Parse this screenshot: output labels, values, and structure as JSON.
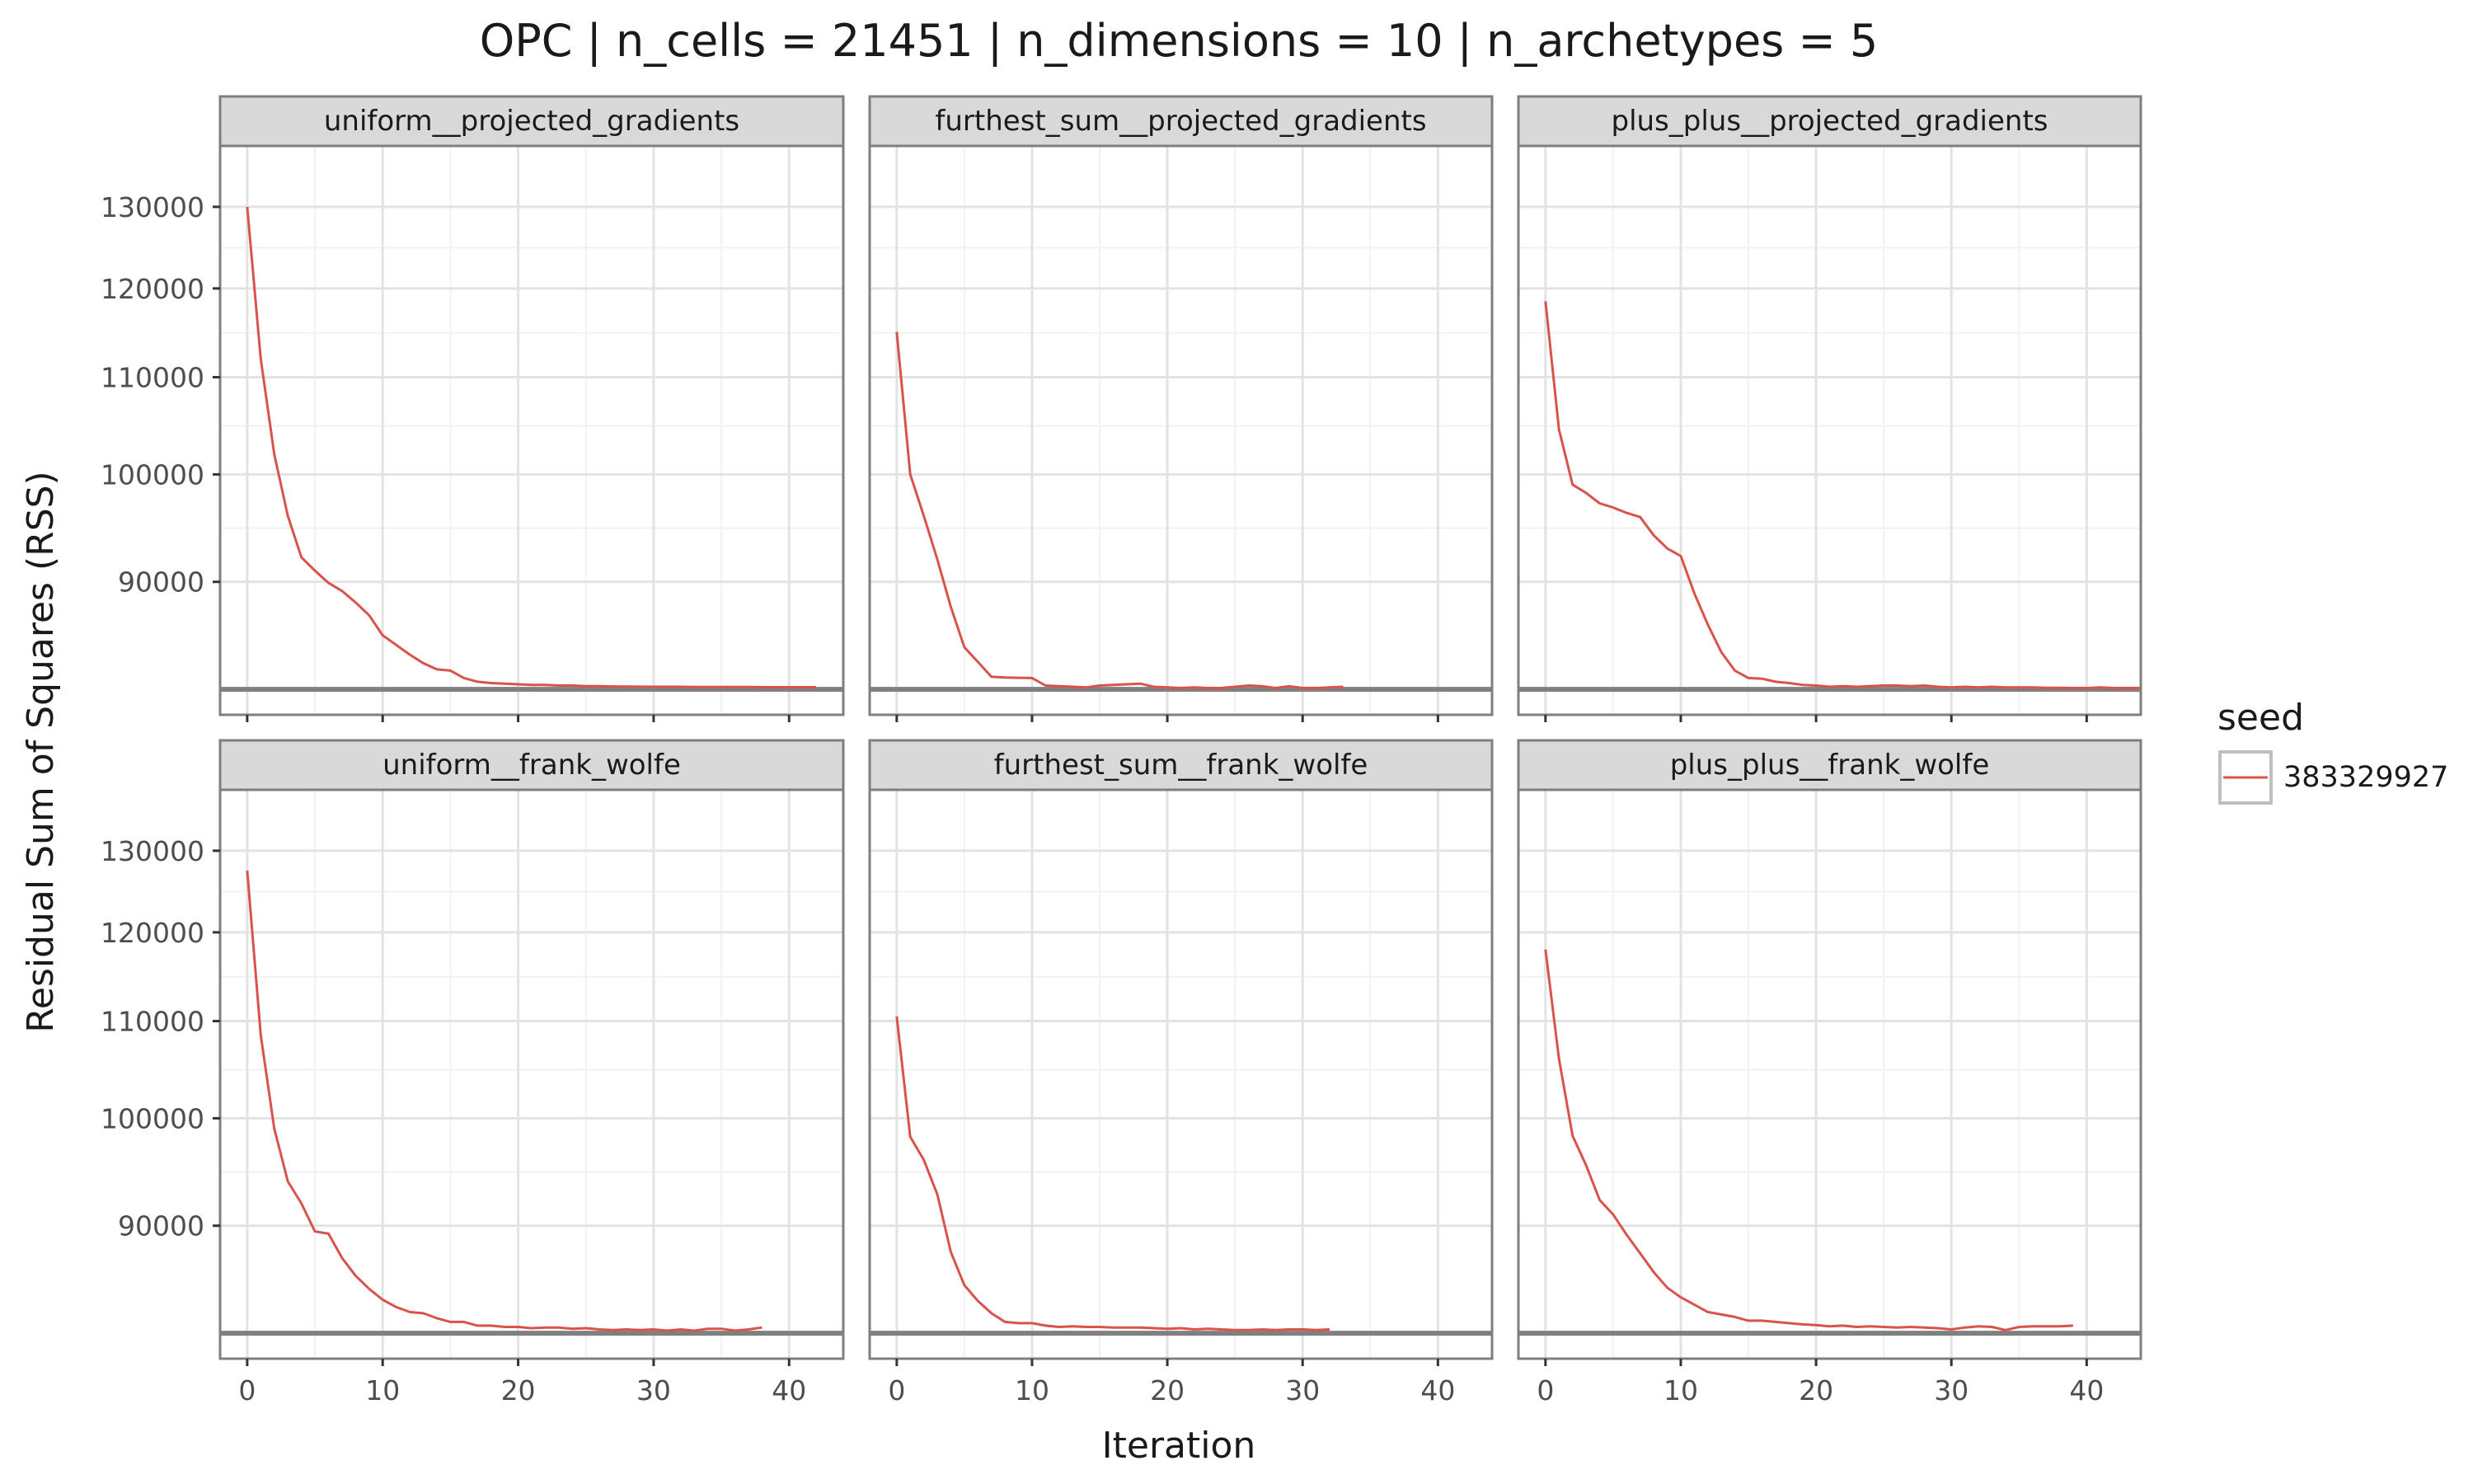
{
  "chart_data": {
    "type": "line",
    "title": "OPC | n_cells = 21451 | n_dimensions = 10 | n_archetypes = 5",
    "xlabel": "Iteration",
    "ylabel": "Residual Sum of Squares (RSS)",
    "x_ticks": [
      "0",
      "10",
      "20",
      "30",
      "40"
    ],
    "y_ticks": [
      "90000",
      "100000",
      "110000",
      "120000",
      "130000"
    ],
    "xlim": [
      -2,
      44
    ],
    "y_scale": "log",
    "ylim": [
      79000,
      138000
    ],
    "grid": true,
    "legend": {
      "title": "seed",
      "placement": "right",
      "entries": [
        {
          "label": "383329927",
          "color": "#d9534a"
        }
      ]
    },
    "reference_line": {
      "y": 81000,
      "color": "#808080"
    },
    "facets": [
      {
        "name": "uniform__projected_gradients",
        "series": [
          {
            "name": "383329927",
            "color": "#d9534a",
            "x": [
              0,
              1,
              2,
              3,
              4,
              5,
              6,
              7,
              8,
              9,
              10,
              11,
              12,
              13,
              14,
              15,
              16,
              17,
              18,
              19,
              20,
              21,
              22,
              23,
              24,
              25,
              26,
              27,
              28,
              29,
              30,
              31,
              32,
              33,
              34,
              35,
              36,
              37,
              38,
              39,
              40,
              41,
              42
            ],
            "y": [
              130000,
              112000,
              102000,
              96000,
              92200,
              91000,
              89900,
              89200,
              88200,
              87100,
              85400,
              84600,
              83800,
              83100,
              82600,
              82500,
              81900,
              81600,
              81500,
              81450,
              81400,
              81350,
              81350,
              81300,
              81300,
              81250,
              81250,
              81230,
              81220,
              81210,
              81200,
              81200,
              81200,
              81190,
              81190,
              81180,
              81180,
              81180,
              81170,
              81170,
              81170,
              81170,
              81170
            ]
          }
        ]
      },
      {
        "name": "furthest_sum__projected_gradients",
        "series": [
          {
            "name": "383329927",
            "color": "#d9534a",
            "x": [
              0,
              1,
              2,
              3,
              4,
              5,
              6,
              7,
              8,
              9,
              10,
              11,
              12,
              13,
              14,
              15,
              16,
              17,
              18,
              19,
              20,
              21,
              22,
              23,
              24,
              25,
              26,
              27,
              28,
              29,
              30,
              31,
              32,
              33
            ],
            "y": [
              115000,
              100000,
              96000,
              92000,
              87800,
              84400,
              83200,
              82000,
              81950,
              81920,
              81900,
              81300,
              81250,
              81200,
              81150,
              81300,
              81350,
              81400,
              81450,
              81200,
              81150,
              81100,
              81150,
              81100,
              81100,
              81200,
              81300,
              81250,
              81100,
              81250,
              81100,
              81100,
              81150,
              81200
            ]
          }
        ]
      },
      {
        "name": "plus_plus__projected_gradients",
        "series": [
          {
            "name": "383329927",
            "color": "#d9534a",
            "x": [
              0,
              1,
              2,
              3,
              4,
              5,
              6,
              7,
              8,
              9,
              10,
              11,
              12,
              13,
              14,
              15,
              16,
              17,
              18,
              19,
              20,
              21,
              22,
              23,
              24,
              25,
              26,
              27,
              28,
              29,
              30,
              31,
              32,
              33,
              34,
              35,
              36,
              37,
              38,
              39,
              40,
              41,
              42,
              43,
              44
            ],
            "y": [
              118500,
              104500,
              99000,
              98200,
              97200,
              96800,
              96300,
              95900,
              94200,
              93000,
              92300,
              89000,
              86300,
              84000,
              82500,
              81900,
              81850,
              81600,
              81500,
              81350,
              81300,
              81200,
              81250,
              81200,
              81250,
              81300,
              81300,
              81250,
              81300,
              81200,
              81150,
              81200,
              81150,
              81200,
              81150,
              81150,
              81150,
              81120,
              81120,
              81100,
              81100,
              81150,
              81100,
              81100,
              81100
            ]
          }
        ]
      },
      {
        "name": "uniform__frank_wolfe",
        "series": [
          {
            "name": "383329927",
            "color": "#d9534a",
            "x": [
              0,
              1,
              2,
              3,
              4,
              5,
              6,
              7,
              8,
              9,
              10,
              11,
              12,
              13,
              14,
              15,
              16,
              17,
              18,
              19,
              20,
              21,
              22,
              23,
              24,
              25,
              26,
              27,
              28,
              29,
              30,
              31,
              32,
              33,
              34,
              35,
              36,
              37,
              38
            ],
            "y": [
              127500,
              108500,
              99000,
              94000,
              92000,
              89500,
              89300,
              87200,
              85700,
              84600,
              83700,
              83100,
              82700,
              82600,
              82200,
              81900,
              81900,
              81600,
              81600,
              81500,
              81500,
              81400,
              81450,
              81450,
              81350,
              81400,
              81300,
              81250,
              81300,
              81250,
              81300,
              81200,
              81300,
              81200,
              81350,
              81350,
              81200,
              81300,
              81450
            ]
          }
        ]
      },
      {
        "name": "furthest_sum__frank_wolfe",
        "series": [
          {
            "name": "383329927",
            "color": "#d9534a",
            "x": [
              0,
              1,
              2,
              3,
              4,
              5,
              6,
              7,
              8,
              9,
              10,
              11,
              12,
              13,
              14,
              15,
              16,
              17,
              18,
              19,
              20,
              21,
              22,
              23,
              24,
              25,
              26,
              27,
              28,
              29,
              30,
              31,
              32
            ],
            "y": [
              110500,
              98200,
              96000,
              92800,
              87700,
              84900,
              83600,
              82600,
              81900,
              81800,
              81800,
              81600,
              81500,
              81550,
              81500,
              81500,
              81450,
              81450,
              81450,
              81400,
              81350,
              81400,
              81300,
              81350,
              81300,
              81250,
              81250,
              81300,
              81250,
              81300,
              81300,
              81250,
              81300
            ]
          }
        ]
      },
      {
        "name": "plus_plus__frank_wolfe",
        "series": [
          {
            "name": "383329927",
            "color": "#d9534a",
            "x": [
              0,
              1,
              2,
              3,
              4,
              5,
              6,
              7,
              8,
              9,
              10,
              11,
              12,
              13,
              14,
              15,
              16,
              17,
              18,
              19,
              20,
              21,
              22,
              23,
              24,
              25,
              26,
              27,
              28,
              29,
              30,
              31,
              32,
              33,
              34,
              35,
              36,
              37,
              38,
              39
            ],
            "y": [
              118000,
              106000,
              98300,
              95500,
              92300,
              91000,
              89200,
              87600,
              86000,
              84700,
              83900,
              83300,
              82700,
              82500,
              82300,
              82000,
              82000,
              81900,
              81800,
              81700,
              81650,
              81550,
              81600,
              81500,
              81550,
              81500,
              81450,
              81500,
              81450,
              81400,
              81300,
              81450,
              81550,
              81500,
              81250,
              81500,
              81550,
              81550,
              81550,
              81600
            ]
          }
        ]
      }
    ]
  }
}
